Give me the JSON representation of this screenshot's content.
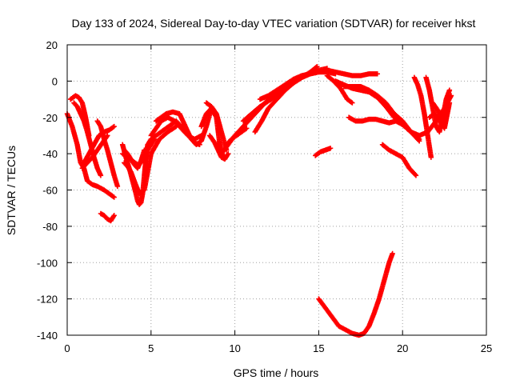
{
  "chart_data": {
    "type": "scatter",
    "title": "Day 133 of 2024, Sidereal Day-to-day VTEC variation (SDTVAR) for receiver hkst",
    "xlabel": "GPS time / hours",
    "ylabel": "SDTVAR / TECUs",
    "xlim": [
      0,
      25
    ],
    "ylim": [
      -140,
      20
    ],
    "xticks": [
      "0",
      "5",
      "10",
      "15",
      "20",
      "25"
    ],
    "yticks": [
      "-140",
      "-120",
      "-100",
      "-80",
      "-60",
      "-40",
      "-20",
      "0",
      "20"
    ],
    "grid": true,
    "marker": "plus",
    "color": "#ff0000",
    "series": [
      {
        "x": [
          0.0,
          0.3,
          0.6,
          0.8,
          1.0,
          1.2,
          1.5,
          1.8,
          2.2,
          2.5,
          2.8
        ],
        "y": [
          -18,
          -25,
          -35,
          -45,
          -48,
          -55,
          -57,
          -58,
          -60,
          -62,
          -64
        ]
      },
      {
        "x": [
          0.2,
          0.5,
          0.7,
          0.9,
          1.1,
          1.3
        ],
        "y": [
          -10,
          -8,
          -9,
          -12,
          -20,
          -30
        ]
      },
      {
        "x": [
          0.4,
          0.6,
          0.8,
          1.0,
          1.2,
          1.4,
          1.6,
          1.8,
          2.0
        ],
        "y": [
          -12,
          -14,
          -18,
          -22,
          -28,
          -35,
          -42,
          -48,
          -52
        ]
      },
      {
        "x": [
          1.0,
          1.3,
          1.6,
          1.9,
          2.2,
          2.5,
          2.8
        ],
        "y": [
          -45,
          -40,
          -35,
          -30,
          -28,
          -27,
          -25
        ]
      },
      {
        "x": [
          0.9,
          1.2,
          1.5,
          1.8,
          2.1,
          2.4
        ],
        "y": [
          -48,
          -45,
          -42,
          -38,
          -34,
          -30
        ]
      },
      {
        "x": [
          1.8,
          2.0,
          2.2,
          2.4,
          2.6,
          2.8,
          3.0
        ],
        "y": [
          -22,
          -25,
          -32,
          -38,
          -45,
          -52,
          -58
        ]
      },
      {
        "x": [
          2.0,
          2.2,
          2.4,
          2.6,
          2.8
        ],
        "y": [
          -73,
          -74,
          -76,
          -77,
          -74
        ]
      },
      {
        "x": [
          3.3,
          3.5,
          3.7,
          3.9,
          4.1,
          4.2,
          4.3,
          4.4,
          4.5,
          4.6,
          4.7,
          4.8,
          5.0,
          5.3,
          5.6,
          5.9,
          6.2,
          6.5
        ],
        "y": [
          -35,
          -42,
          -48,
          -55,
          -62,
          -66,
          -68,
          -67,
          -62,
          -52,
          -42,
          -35,
          -32,
          -30,
          -28,
          -26,
          -24,
          -22
        ]
      },
      {
        "x": [
          3.4,
          3.6,
          3.8,
          4.0,
          4.3,
          4.6,
          5.0,
          5.5,
          6.0,
          6.5
        ],
        "y": [
          -45,
          -47,
          -50,
          -55,
          -62,
          -60,
          -40,
          -32,
          -28,
          -25
        ]
      },
      {
        "x": [
          3.3,
          3.6,
          3.9,
          4.2,
          4.5,
          4.8,
          5.2
        ],
        "y": [
          -40,
          -42,
          -44,
          -46,
          -44,
          -38,
          -32
        ]
      },
      {
        "x": [
          3.4,
          3.6,
          3.8,
          4.0,
          4.2,
          4.4,
          4.6
        ],
        "y": [
          -38,
          -40,
          -43,
          -46,
          -48,
          -44,
          -38
        ]
      },
      {
        "x": [
          5.0,
          5.3,
          5.6,
          6.0,
          6.4,
          6.8,
          7.2,
          7.6,
          8.0
        ],
        "y": [
          -30,
          -26,
          -22,
          -20,
          -22,
          -26,
          -30,
          -32,
          -30
        ]
      },
      {
        "x": [
          5.3,
          5.6,
          5.9,
          6.3,
          6.7,
          7.0,
          7.3,
          7.6,
          7.9
        ],
        "y": [
          -22,
          -20,
          -18,
          -17,
          -18,
          -24,
          -30,
          -34,
          -35
        ]
      },
      {
        "x": [
          6.5,
          6.8,
          7.1,
          7.4,
          7.7,
          8.0,
          8.3,
          8.6
        ],
        "y": [
          -22,
          -25,
          -28,
          -32,
          -35,
          -33,
          -25,
          -15
        ]
      },
      {
        "x": [
          8.0,
          8.3,
          8.6,
          8.9,
          9.1,
          9.3
        ],
        "y": [
          -25,
          -18,
          -15,
          -20,
          -35,
          -42
        ]
      },
      {
        "x": [
          8.3,
          8.6,
          8.9,
          9.2,
          9.5
        ],
        "y": [
          -12,
          -14,
          -18,
          -28,
          -38
        ]
      },
      {
        "x": [
          8.5,
          8.8,
          9.0,
          9.2,
          9.4,
          9.6
        ],
        "y": [
          -30,
          -34,
          -38,
          -42,
          -43,
          -40
        ]
      },
      {
        "x": [
          9.5,
          9.8,
          10.1,
          10.4,
          10.7
        ],
        "y": [
          -35,
          -32,
          -30,
          -28,
          -26
        ]
      },
      {
        "x": [
          9.2,
          9.6,
          10.0,
          10.5,
          11.0,
          11.5,
          12.0,
          12.5,
          13.0,
          13.5,
          14.0,
          14.5,
          15.0,
          15.5,
          16.0
        ],
        "y": [
          -40,
          -35,
          -30,
          -25,
          -20,
          -15,
          -10,
          -6,
          -2,
          1,
          3,
          4,
          5,
          5,
          4
        ]
      },
      {
        "x": [
          10.5,
          11.0,
          11.5,
          12.0,
          12.5,
          13.0,
          13.5,
          14.0,
          14.5,
          15.0,
          15.5
        ],
        "y": [
          -22,
          -18,
          -14,
          -11,
          -8,
          -4,
          -1,
          2,
          4,
          6,
          7
        ]
      },
      {
        "x": [
          11.2,
          11.6,
          12.0,
          12.5,
          13.0,
          13.5,
          14.0,
          14.5,
          14.9
        ],
        "y": [
          -28,
          -22,
          -15,
          -10,
          -5,
          -1,
          2,
          5,
          8
        ]
      },
      {
        "x": [
          11.5,
          12.0,
          12.5,
          13.0,
          13.5,
          14.0,
          14.5,
          15.0,
          15.5,
          16.0,
          16.5,
          17.0,
          17.5,
          18.0,
          18.5
        ],
        "y": [
          -10,
          -8,
          -5,
          -2,
          1,
          3,
          4,
          5,
          6,
          5,
          4,
          3,
          3,
          4,
          4
        ]
      },
      {
        "x": [
          14.8,
          15.1,
          15.4,
          15.7
        ],
        "y": [
          -41,
          -39,
          -38,
          -37
        ]
      },
      {
        "x": [
          15.0,
          15.4,
          15.8,
          16.2,
          16.6,
          17.0,
          17.4,
          17.7,
          18.0,
          18.3,
          18.6,
          18.9,
          19.2,
          19.4
        ],
        "y": [
          -120,
          -125,
          -130,
          -135,
          -137,
          -139,
          -140,
          -139,
          -135,
          -128,
          -120,
          -110,
          -100,
          -95
        ]
      },
      {
        "x": [
          15.5,
          15.9,
          16.3,
          16.7,
          17.0
        ],
        "y": [
          3,
          0,
          -4,
          -10,
          -12
        ]
      },
      {
        "x": [
          16.5,
          17.0,
          17.5,
          18.0,
          18.5,
          19.0,
          19.5,
          20.0,
          20.5,
          21.0
        ],
        "y": [
          -3,
          -3,
          -3,
          -5,
          -8,
          -12,
          -18,
          -22,
          -28,
          -33
        ]
      },
      {
        "x": [
          16.0,
          16.5,
          17.0,
          17.5,
          18.0,
          18.5,
          19.0,
          19.5,
          20.0,
          20.5,
          21.0,
          21.5,
          22.0,
          22.5,
          22.9
        ],
        "y": [
          0,
          -2,
          -4,
          -5,
          -6,
          -9,
          -14,
          -20,
          -24,
          -28,
          -30,
          -28,
          -22,
          -15,
          -8
        ]
      },
      {
        "x": [
          16.8,
          17.2,
          17.6,
          18.0,
          18.4,
          18.8,
          19.2,
          19.6,
          20.0,
          20.5,
          21.0
        ],
        "y": [
          -20,
          -22,
          -22,
          -21,
          -21,
          -22,
          -23,
          -22,
          -24,
          -28,
          -32
        ]
      },
      {
        "x": [
          18.8,
          19.2,
          19.6,
          20.0,
          20.4,
          20.8
        ],
        "y": [
          -35,
          -38,
          -40,
          -42,
          -48,
          -52
        ]
      },
      {
        "x": [
          20.7,
          20.9,
          21.1,
          21.3,
          21.5,
          21.7
        ],
        "y": [
          2,
          -2,
          -8,
          -18,
          -30,
          -42
        ]
      },
      {
        "x": [
          21.4,
          21.6,
          21.8,
          22.0,
          22.2,
          22.4,
          22.6,
          22.8
        ],
        "y": [
          2,
          -5,
          -15,
          -25,
          -28,
          -20,
          -10,
          -5
        ]
      },
      {
        "x": [
          21.6,
          21.9,
          22.2,
          22.5,
          22.8
        ],
        "y": [
          -20,
          -18,
          -22,
          -26,
          -12
        ]
      },
      {
        "x": [
          21.8,
          22.1,
          22.4,
          22.7
        ],
        "y": [
          -12,
          -16,
          -24,
          -8
        ]
      }
    ]
  }
}
